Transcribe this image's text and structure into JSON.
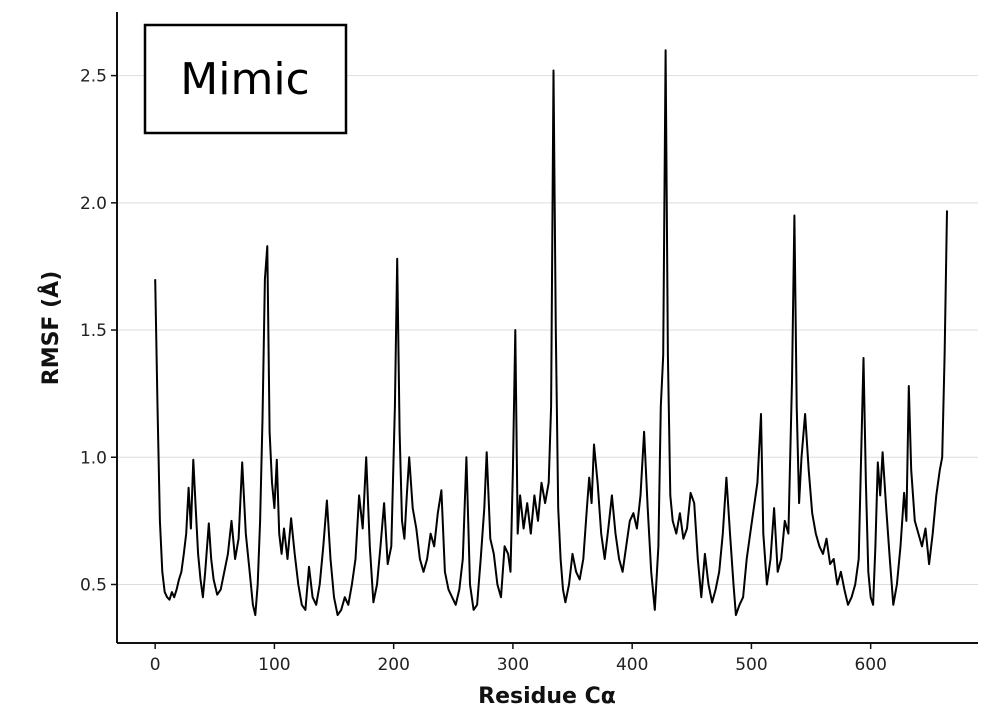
{
  "chart_data": {
    "type": "line",
    "title": "",
    "annotation": "Mimic",
    "xlabel": "Residue Cα",
    "ylabel": "RMSF (Å)",
    "xlim": [
      -32,
      690
    ],
    "ylim": [
      0.27,
      2.75
    ],
    "xticks": [
      0,
      100,
      200,
      300,
      400,
      500,
      600
    ],
    "yticks": [
      0.5,
      1.0,
      1.5,
      2.0,
      2.5
    ],
    "ytick_labels": [
      "0.5",
      "1.0",
      "1.5",
      "2.0",
      "2.5"
    ],
    "grid": "horizontal",
    "legend": "none",
    "series": [
      {
        "color": "#000000",
        "points": [
          [
            0,
            1.7
          ],
          [
            2,
            1.2
          ],
          [
            4,
            0.75
          ],
          [
            6,
            0.55
          ],
          [
            8,
            0.47
          ],
          [
            10,
            0.45
          ],
          [
            12,
            0.44
          ],
          [
            14,
            0.47
          ],
          [
            16,
            0.45
          ],
          [
            18,
            0.48
          ],
          [
            20,
            0.52
          ],
          [
            22,
            0.55
          ],
          [
            24,
            0.62
          ],
          [
            26,
            0.7
          ],
          [
            28,
            0.88
          ],
          [
            30,
            0.72
          ],
          [
            32,
            0.99
          ],
          [
            34,
            0.8
          ],
          [
            36,
            0.62
          ],
          [
            38,
            0.52
          ],
          [
            40,
            0.45
          ],
          [
            42,
            0.55
          ],
          [
            45,
            0.74
          ],
          [
            47,
            0.6
          ],
          [
            49,
            0.52
          ],
          [
            52,
            0.46
          ],
          [
            55,
            0.48
          ],
          [
            58,
            0.55
          ],
          [
            61,
            0.62
          ],
          [
            64,
            0.75
          ],
          [
            67,
            0.6
          ],
          [
            70,
            0.68
          ],
          [
            73,
            0.98
          ],
          [
            76,
            0.7
          ],
          [
            79,
            0.56
          ],
          [
            82,
            0.42
          ],
          [
            84,
            0.38
          ],
          [
            86,
            0.5
          ],
          [
            88,
            0.75
          ],
          [
            90,
            1.15
          ],
          [
            92,
            1.7
          ],
          [
            94,
            1.83
          ],
          [
            96,
            1.1
          ],
          [
            98,
            0.9
          ],
          [
            100,
            0.8
          ],
          [
            102,
            0.99
          ],
          [
            104,
            0.7
          ],
          [
            106,
            0.62
          ],
          [
            108,
            0.72
          ],
          [
            111,
            0.6
          ],
          [
            114,
            0.76
          ],
          [
            117,
            0.62
          ],
          [
            120,
            0.5
          ],
          [
            123,
            0.42
          ],
          [
            126,
            0.4
          ],
          [
            129,
            0.57
          ],
          [
            132,
            0.45
          ],
          [
            135,
            0.42
          ],
          [
            138,
            0.5
          ],
          [
            141,
            0.65
          ],
          [
            144,
            0.83
          ],
          [
            147,
            0.6
          ],
          [
            150,
            0.45
          ],
          [
            153,
            0.38
          ],
          [
            156,
            0.4
          ],
          [
            159,
            0.45
          ],
          [
            162,
            0.42
          ],
          [
            165,
            0.5
          ],
          [
            168,
            0.6
          ],
          [
            171,
            0.85
          ],
          [
            174,
            0.72
          ],
          [
            177,
            1.0
          ],
          [
            180,
            0.65
          ],
          [
            183,
            0.43
          ],
          [
            186,
            0.5
          ],
          [
            189,
            0.65
          ],
          [
            192,
            0.82
          ],
          [
            195,
            0.58
          ],
          [
            198,
            0.65
          ],
          [
            201,
            1.2
          ],
          [
            203,
            1.78
          ],
          [
            205,
            1.1
          ],
          [
            207,
            0.75
          ],
          [
            209,
            0.68
          ],
          [
            211,
            0.85
          ],
          [
            213,
            1.0
          ],
          [
            216,
            0.8
          ],
          [
            219,
            0.72
          ],
          [
            222,
            0.6
          ],
          [
            225,
            0.55
          ],
          [
            228,
            0.6
          ],
          [
            231,
            0.7
          ],
          [
            234,
            0.65
          ],
          [
            237,
            0.78
          ],
          [
            240,
            0.87
          ],
          [
            243,
            0.55
          ],
          [
            246,
            0.48
          ],
          [
            249,
            0.45
          ],
          [
            252,
            0.42
          ],
          [
            255,
            0.48
          ],
          [
            258,
            0.6
          ],
          [
            261,
            1.0
          ],
          [
            264,
            0.5
          ],
          [
            267,
            0.4
          ],
          [
            270,
            0.42
          ],
          [
            273,
            0.6
          ],
          [
            276,
            0.8
          ],
          [
            278,
            1.02
          ],
          [
            281,
            0.68
          ],
          [
            284,
            0.62
          ],
          [
            287,
            0.5
          ],
          [
            290,
            0.45
          ],
          [
            293,
            0.65
          ],
          [
            296,
            0.62
          ],
          [
            298,
            0.55
          ],
          [
            300,
            0.95
          ],
          [
            302,
            1.5
          ],
          [
            304,
            0.7
          ],
          [
            306,
            0.85
          ],
          [
            309,
            0.72
          ],
          [
            312,
            0.82
          ],
          [
            315,
            0.7
          ],
          [
            318,
            0.85
          ],
          [
            321,
            0.75
          ],
          [
            324,
            0.9
          ],
          [
            327,
            0.82
          ],
          [
            330,
            0.9
          ],
          [
            332,
            1.2
          ],
          [
            334,
            2.52
          ],
          [
            336,
            1.5
          ],
          [
            338,
            0.8
          ],
          [
            340,
            0.6
          ],
          [
            342,
            0.48
          ],
          [
            344,
            0.43
          ],
          [
            347,
            0.5
          ],
          [
            350,
            0.62
          ],
          [
            353,
            0.55
          ],
          [
            356,
            0.52
          ],
          [
            359,
            0.6
          ],
          [
            362,
            0.8
          ],
          [
            364,
            0.92
          ],
          [
            366,
            0.82
          ],
          [
            368,
            1.05
          ],
          [
            371,
            0.9
          ],
          [
            374,
            0.7
          ],
          [
            377,
            0.6
          ],
          [
            380,
            0.72
          ],
          [
            383,
            0.85
          ],
          [
            386,
            0.7
          ],
          [
            389,
            0.6
          ],
          [
            392,
            0.55
          ],
          [
            395,
            0.65
          ],
          [
            398,
            0.75
          ],
          [
            401,
            0.78
          ],
          [
            404,
            0.72
          ],
          [
            407,
            0.85
          ],
          [
            410,
            1.1
          ],
          [
            413,
            0.8
          ],
          [
            416,
            0.55
          ],
          [
            419,
            0.4
          ],
          [
            422,
            0.65
          ],
          [
            424,
            1.2
          ],
          [
            426,
            1.4
          ],
          [
            428,
            2.6
          ],
          [
            430,
            1.4
          ],
          [
            432,
            0.85
          ],
          [
            434,
            0.75
          ],
          [
            437,
            0.7
          ],
          [
            440,
            0.78
          ],
          [
            443,
            0.68
          ],
          [
            446,
            0.72
          ],
          [
            449,
            0.86
          ],
          [
            452,
            0.82
          ],
          [
            455,
            0.6
          ],
          [
            458,
            0.45
          ],
          [
            461,
            0.62
          ],
          [
            464,
            0.5
          ],
          [
            467,
            0.43
          ],
          [
            470,
            0.48
          ],
          [
            473,
            0.55
          ],
          [
            476,
            0.7
          ],
          [
            479,
            0.92
          ],
          [
            482,
            0.7
          ],
          [
            485,
            0.5
          ],
          [
            487,
            0.38
          ],
          [
            490,
            0.42
          ],
          [
            493,
            0.45
          ],
          [
            496,
            0.6
          ],
          [
            499,
            0.7
          ],
          [
            502,
            0.8
          ],
          [
            505,
            0.9
          ],
          [
            508,
            1.17
          ],
          [
            510,
            0.7
          ],
          [
            513,
            0.5
          ],
          [
            516,
            0.6
          ],
          [
            519,
            0.8
          ],
          [
            522,
            0.55
          ],
          [
            525,
            0.6
          ],
          [
            528,
            0.75
          ],
          [
            531,
            0.7
          ],
          [
            534,
            1.3
          ],
          [
            536,
            1.95
          ],
          [
            538,
            1.2
          ],
          [
            540,
            0.82
          ],
          [
            542,
            1.0
          ],
          [
            545,
            1.17
          ],
          [
            548,
            0.95
          ],
          [
            551,
            0.78
          ],
          [
            554,
            0.7
          ],
          [
            557,
            0.65
          ],
          [
            560,
            0.62
          ],
          [
            563,
            0.68
          ],
          [
            566,
            0.58
          ],
          [
            569,
            0.6
          ],
          [
            572,
            0.5
          ],
          [
            575,
            0.55
          ],
          [
            578,
            0.48
          ],
          [
            581,
            0.42
          ],
          [
            584,
            0.45
          ],
          [
            587,
            0.5
          ],
          [
            590,
            0.6
          ],
          [
            592,
            1.0
          ],
          [
            594,
            1.39
          ],
          [
            596,
            0.9
          ],
          [
            598,
            0.55
          ],
          [
            600,
            0.45
          ],
          [
            602,
            0.42
          ],
          [
            604,
            0.65
          ],
          [
            606,
            0.98
          ],
          [
            608,
            0.85
          ],
          [
            610,
            1.02
          ],
          [
            613,
            0.8
          ],
          [
            616,
            0.6
          ],
          [
            619,
            0.42
          ],
          [
            622,
            0.5
          ],
          [
            625,
            0.65
          ],
          [
            628,
            0.86
          ],
          [
            630,
            0.75
          ],
          [
            632,
            1.28
          ],
          [
            634,
            0.95
          ],
          [
            637,
            0.75
          ],
          [
            640,
            0.7
          ],
          [
            643,
            0.65
          ],
          [
            646,
            0.72
          ],
          [
            649,
            0.58
          ],
          [
            652,
            0.7
          ],
          [
            655,
            0.85
          ],
          [
            658,
            0.95
          ],
          [
            660,
            1.0
          ],
          [
            662,
            1.4
          ],
          [
            664,
            1.97
          ]
        ]
      }
    ]
  }
}
